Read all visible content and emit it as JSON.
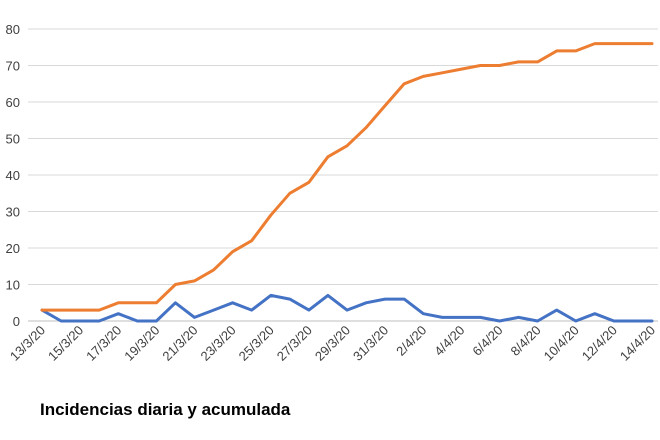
{
  "chart_data": {
    "type": "line",
    "title": "Incidencias diaria y acumulada",
    "xlabel": "",
    "ylabel": "",
    "ylim": [
      0,
      80
    ],
    "yticks": [
      0,
      10,
      20,
      30,
      40,
      50,
      60,
      70,
      80
    ],
    "grid": true,
    "legend": "none",
    "x": [
      "13/3/20",
      "14/3/20",
      "15/3/20",
      "16/3/20",
      "17/3/20",
      "18/3/20",
      "19/3/20",
      "20/3/20",
      "21/3/20",
      "22/3/20",
      "23/3/20",
      "24/3/20",
      "25/3/20",
      "26/3/20",
      "27/3/20",
      "28/3/20",
      "29/3/20",
      "30/3/20",
      "31/3/20",
      "1/4/20",
      "2/4/20",
      "3/4/20",
      "4/4/20",
      "5/4/20",
      "6/4/20",
      "7/4/20",
      "8/4/20",
      "9/4/20",
      "10/4/20",
      "11/4/20",
      "12/4/20",
      "13/4/20",
      "14/4/20"
    ],
    "x_tick_labels": [
      "13/3/20",
      "15/3/20",
      "17/3/20",
      "19/3/20",
      "21/3/20",
      "23/3/20",
      "25/3/20",
      "27/3/20",
      "29/3/20",
      "31/3/20",
      "2/4/20",
      "4/4/20",
      "6/4/20",
      "8/4/20",
      "10/4/20",
      "12/4/20",
      "14/4/20"
    ],
    "series": [
      {
        "color": "#4472c4",
        "values": [
          3,
          0,
          0,
          0,
          2,
          0,
          0,
          5,
          1,
          3,
          5,
          3,
          7,
          6,
          3,
          7,
          3,
          5,
          6,
          6,
          2,
          1,
          1,
          1,
          0,
          1,
          0,
          3,
          0,
          2,
          0,
          0,
          0
        ]
      },
      {
        "color": "#ed7d31",
        "values": [
          3,
          3,
          3,
          3,
          5,
          5,
          5,
          10,
          11,
          14,
          19,
          22,
          29,
          35,
          38,
          45,
          48,
          53,
          59,
          65,
          67,
          68,
          69,
          70,
          70,
          71,
          71,
          74,
          74,
          76,
          76,
          76,
          76
        ]
      }
    ]
  }
}
